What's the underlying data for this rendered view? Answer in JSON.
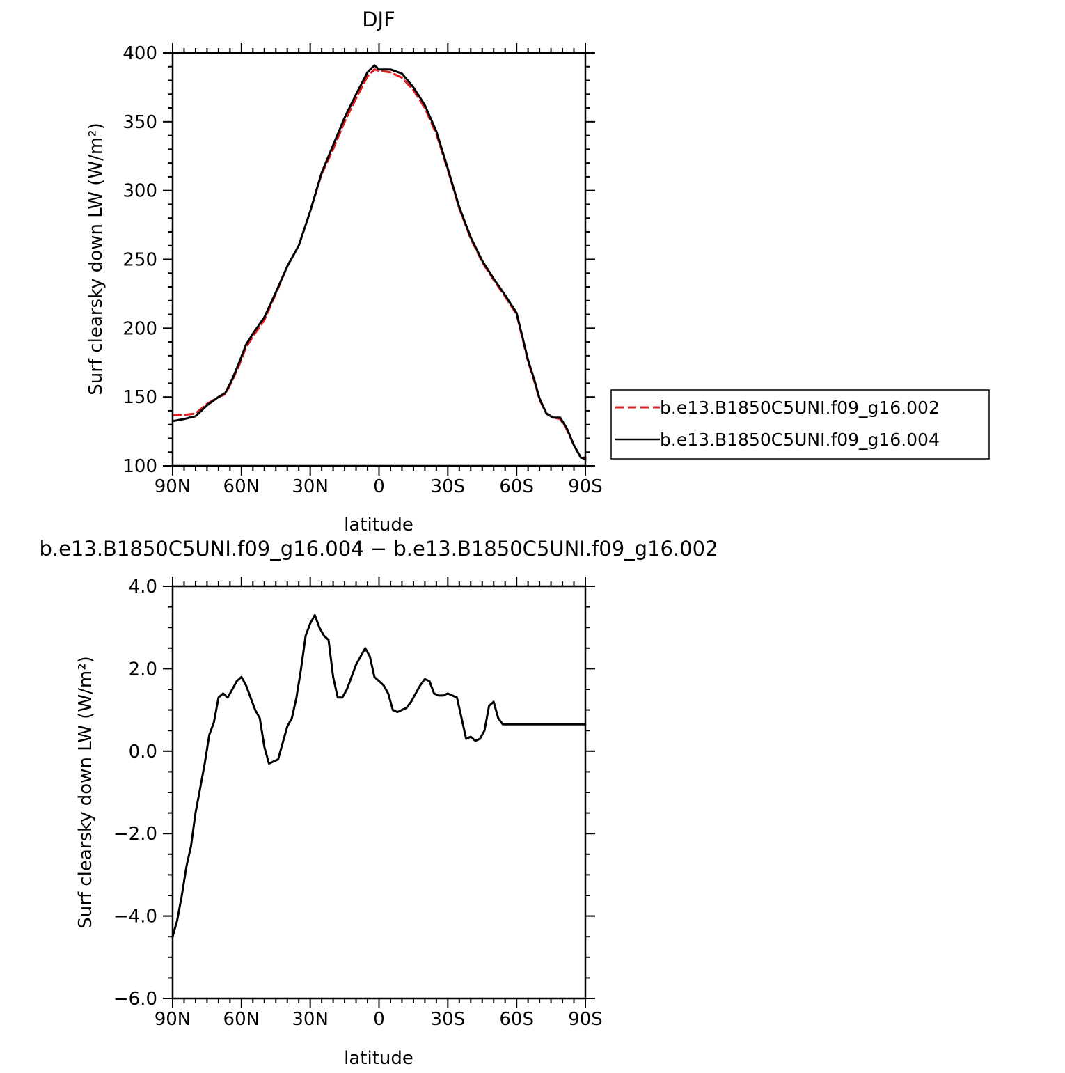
{
  "chart_data": [
    {
      "type": "line",
      "title": "DJF",
      "xlabel": "latitude",
      "ylabel": "Surf clearsky down LW (W/m²)",
      "xlim": [
        90,
        -90
      ],
      "ylim": [
        100,
        400
      ],
      "xticks": [
        90,
        60,
        30,
        0,
        -30,
        -60,
        -90
      ],
      "xtick_labels": [
        "90N",
        "60N",
        "30N",
        "0",
        "30S",
        "60S",
        "90S"
      ],
      "yticks": [
        100,
        150,
        200,
        250,
        300,
        350,
        400
      ],
      "ytick_labels": [
        "100",
        "150",
        "200",
        "250",
        "300",
        "350",
        "400"
      ],
      "legend": {
        "placement": "right",
        "entries": [
          "b.e13.B1850C5UNI.f09_g16.002",
          "b.e13.B1850C5UNI.f09_g16.004"
        ]
      },
      "series": [
        {
          "name": "b.e13.B1850C5UNI.f09_g16.002",
          "color": "#e41a1c",
          "dash": "dashed",
          "x": [
            90,
            85,
            80,
            75,
            70,
            67,
            64,
            61,
            58,
            55,
            50,
            45,
            40,
            35,
            30,
            25,
            20,
            15,
            10,
            5,
            2,
            0,
            -5,
            -10,
            -15,
            -20,
            -25,
            -30,
            -35,
            -40,
            -45,
            -50,
            -55,
            -60,
            -65,
            -68,
            -70,
            -73,
            -76,
            -79,
            -82,
            -85,
            -88,
            -90
          ],
          "y": [
            137,
            137,
            138,
            145,
            150,
            152,
            162,
            173,
            186,
            194,
            206,
            225,
            245,
            260,
            285,
            312,
            330,
            350,
            367,
            383,
            388,
            387,
            386,
            382,
            373,
            360,
            341,
            315,
            287,
            265,
            248,
            235,
            223,
            210,
            176,
            160,
            148,
            138,
            135,
            134,
            126,
            115,
            106,
            106
          ]
        },
        {
          "name": "b.e13.B1850C5UNI.f09_g16.004",
          "color": "#000000",
          "dash": "solid",
          "x": [
            90,
            85,
            80,
            75,
            70,
            67,
            64,
            61,
            58,
            55,
            50,
            45,
            40,
            35,
            30,
            25,
            20,
            15,
            10,
            5,
            2,
            0,
            -5,
            -10,
            -15,
            -20,
            -25,
            -30,
            -35,
            -40,
            -45,
            -50,
            -55,
            -60,
            -65,
            -68,
            -70,
            -73,
            -76,
            -79,
            -82,
            -85,
            -88,
            -90
          ],
          "y": [
            132.5,
            134,
            136,
            144,
            150,
            153,
            163,
            175,
            188,
            196,
            208,
            226,
            245,
            260,
            285,
            313,
            333,
            353,
            370,
            386,
            391,
            388,
            388,
            385,
            375,
            362,
            343,
            316,
            288,
            266,
            249,
            236,
            224,
            211,
            177,
            161,
            149,
            138,
            135,
            135,
            127,
            115,
            106,
            105
          ]
        }
      ]
    },
    {
      "type": "line",
      "title": "b.e13.B1850C5UNI.f09_g16.004 − b.e13.B1850C5UNI.f09_g16.002",
      "xlabel": "latitude",
      "ylabel": "Surf clearsky down LW (W/m²)",
      "xlim": [
        90,
        -90
      ],
      "ylim": [
        -6.0,
        4.0
      ],
      "xticks": [
        90,
        60,
        30,
        0,
        -30,
        -60,
        -90
      ],
      "xtick_labels": [
        "90N",
        "60N",
        "30N",
        "0",
        "30S",
        "60S",
        "90S"
      ],
      "yticks": [
        -6.0,
        -4.0,
        -2.0,
        0.0,
        2.0,
        4.0
      ],
      "ytick_labels": [
        "−6.0",
        "−4.0",
        "−2.0",
        "0.0",
        "2.0",
        "4.0"
      ],
      "series": [
        {
          "color": "#000000",
          "dash": "solid",
          "x": [
            90,
            88,
            86,
            84,
            82,
            80,
            78,
            76,
            74,
            72,
            70,
            68,
            66,
            64,
            62,
            60,
            58,
            56,
            54,
            52,
            50,
            48,
            46,
            44,
            42,
            40,
            38,
            36,
            34,
            32,
            30,
            28,
            26,
            24,
            22,
            20,
            18,
            16,
            14,
            12,
            10,
            8,
            6,
            4,
            2,
            0,
            -2,
            -4,
            -6,
            -8,
            -10,
            -12,
            -14,
            -16,
            -18,
            -20,
            -22,
            -24,
            -26,
            -28,
            -30,
            -32,
            -34,
            -36,
            -38,
            -40,
            -42,
            -44,
            -46,
            -48,
            -50,
            -52,
            -54,
            -56,
            -58,
            -60,
            -62,
            -64,
            -66,
            -68,
            -70,
            -72,
            -74,
            -76,
            -78,
            -80,
            -82,
            -84,
            -86,
            -88,
            -90
          ],
          "y": [
            -4.5,
            -4.1,
            -3.5,
            -2.8,
            -2.3,
            -1.5,
            -0.9,
            -0.3,
            0.4,
            0.7,
            1.3,
            1.4,
            1.3,
            1.5,
            1.7,
            1.8,
            1.6,
            1.3,
            1.0,
            0.8,
            0.1,
            -0.3,
            -0.25,
            -0.2,
            0.2,
            0.6,
            0.8,
            1.3,
            2.0,
            2.8,
            3.1,
            3.3,
            3.0,
            2.8,
            2.7,
            1.8,
            1.3,
            1.3,
            1.5,
            1.8,
            2.1,
            2.3,
            2.5,
            2.3,
            1.8,
            1.7,
            1.6,
            1.4,
            1.0,
            0.95,
            1.0,
            1.05,
            1.2,
            1.4,
            1.6,
            1.75,
            1.7,
            1.4,
            1.35,
            1.35,
            1.4,
            1.35,
            1.3,
            0.8,
            0.3,
            0.35,
            0.25,
            0.3,
            0.5,
            1.1,
            1.2,
            0.8,
            0.65,
            0.65,
            0.65,
            0.65,
            0.65,
            0.65,
            0.65,
            0.65,
            0.65,
            0.65,
            0.65,
            0.65,
            0.65,
            0.65,
            0.65,
            0.65,
            0.65,
            0.65,
            0.65
          ]
        }
      ]
    }
  ]
}
